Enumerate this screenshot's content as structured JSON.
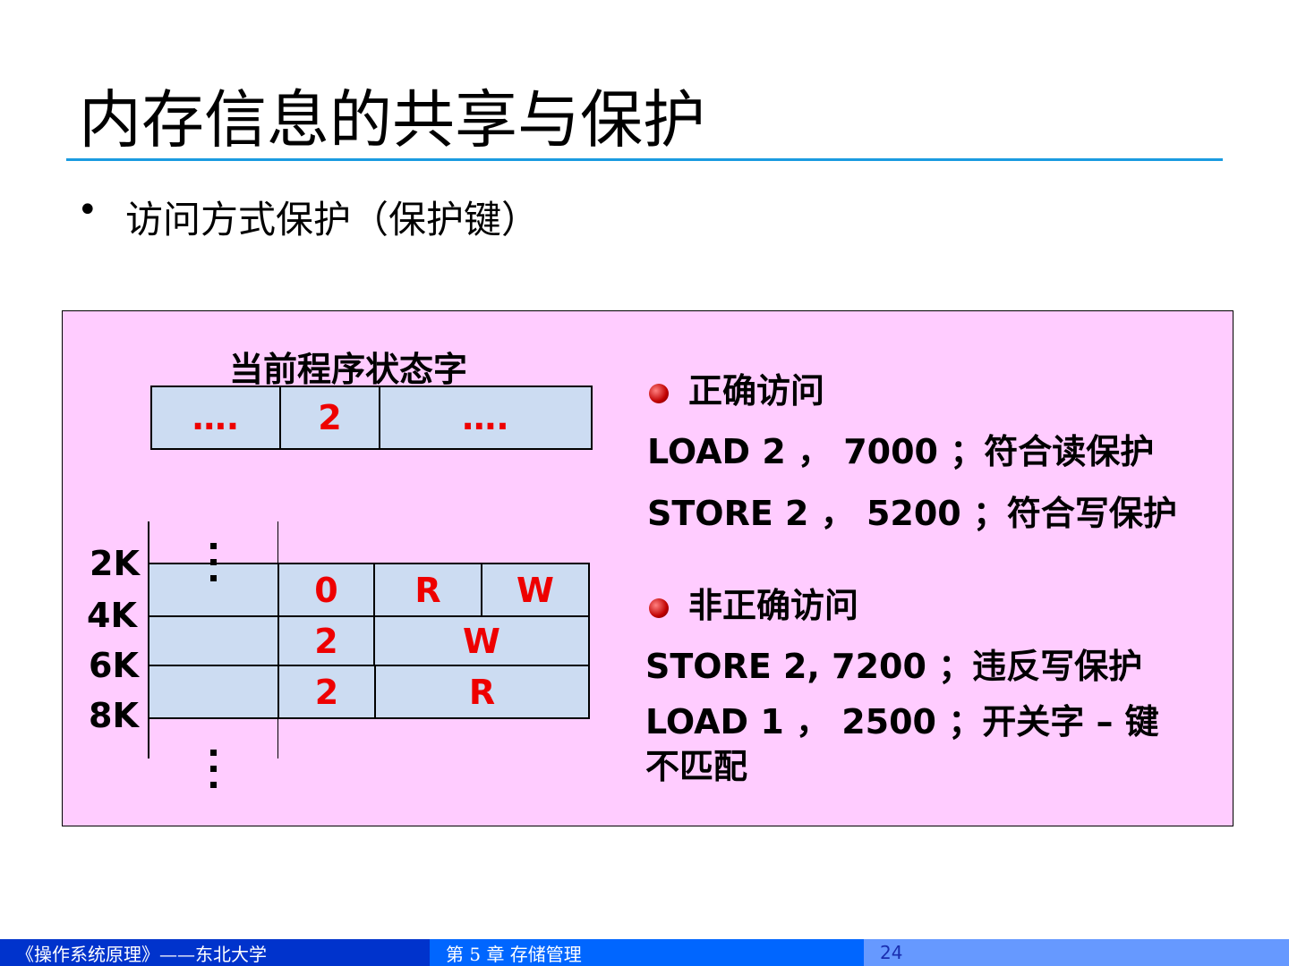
{
  "title": "内存信息的共享与保护",
  "bullet": {
    "marker": "•",
    "text": "访问方式保护（保护键）"
  },
  "diagram": {
    "psw_label": "当前程序状态字",
    "psw_cells": [
      "….",
      "2",
      "…."
    ],
    "addresses": [
      "2K",
      "4K",
      "6K",
      "8K"
    ],
    "rows": [
      {
        "key": "0",
        "access": [
          "R",
          "W"
        ]
      },
      {
        "key": "2",
        "access": [
          "W"
        ]
      },
      {
        "key": "2",
        "access": [
          "R"
        ]
      }
    ]
  },
  "correct": {
    "heading": "正确访问",
    "lines": [
      "LOAD 2 ， 7000 ；符合读保护",
      "STORE 2 ， 5200 ；符合写保护"
    ]
  },
  "incorrect": {
    "heading": "非正确访问",
    "lines": [
      "STORE 2, 7200 ；违反写保护",
      "LOAD 1 ， 2500 ；开关字 – 键不匹配"
    ]
  },
  "footer": {
    "course": "《操作系统原理》——东北大学",
    "chapter": "第 5 章  存储管理",
    "page": "24"
  },
  "colors": {
    "box_bg": "#ffccff",
    "cell_bg": "#ccdcf2",
    "accent_red": "#ee0000",
    "rule": "#1a9be0",
    "footer": [
      "#0033cc",
      "#0066ff",
      "#6699ff"
    ]
  }
}
